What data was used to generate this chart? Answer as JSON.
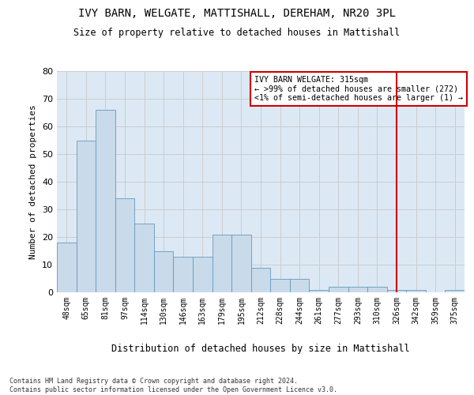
{
  "title": "IVY BARN, WELGATE, MATTISHALL, DEREHAM, NR20 3PL",
  "subtitle": "Size of property relative to detached houses in Mattishall",
  "xlabel": "Distribution of detached houses by size in Mattishall",
  "ylabel": "Number of detached properties",
  "categories": [
    "48sqm",
    "65sqm",
    "81sqm",
    "97sqm",
    "114sqm",
    "130sqm",
    "146sqm",
    "163sqm",
    "179sqm",
    "195sqm",
    "212sqm",
    "228sqm",
    "244sqm",
    "261sqm",
    "277sqm",
    "293sqm",
    "310sqm",
    "326sqm",
    "342sqm",
    "359sqm",
    "375sqm"
  ],
  "values": [
    18,
    55,
    66,
    34,
    25,
    15,
    13,
    13,
    21,
    21,
    9,
    5,
    5,
    1,
    2,
    2,
    2,
    1,
    1,
    0,
    1
  ],
  "bar_color": "#c9daea",
  "bar_edge_color": "#6699bb",
  "grid_color": "#cccccc",
  "background_color": "#dce9f5",
  "property_line_x": 17.0,
  "annotation_text_line1": "IVY BARN WELGATE: 315sqm",
  "annotation_text_line2": "← >99% of detached houses are smaller (272)",
  "annotation_text_line3": "<1% of semi-detached houses are larger (1) →",
  "annotation_box_color": "#cc0000",
  "ylim": [
    0,
    80
  ],
  "yticks": [
    0,
    10,
    20,
    30,
    40,
    50,
    60,
    70,
    80
  ],
  "footer_line1": "Contains HM Land Registry data © Crown copyright and database right 2024.",
  "footer_line2": "Contains public sector information licensed under the Open Government Licence v3.0."
}
